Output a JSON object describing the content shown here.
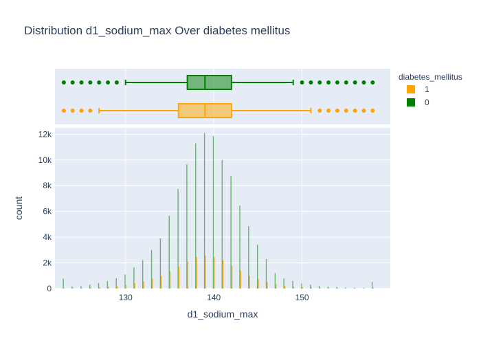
{
  "chart_data": {
    "type": "bar",
    "title": "Distribution d1_sodium_max Over diabetes mellitus",
    "xlabel": "d1_sodium_max",
    "ylabel": "count",
    "xlim": [
      122,
      160
    ],
    "ylim": [
      0,
      12500
    ],
    "xticks": [
      130,
      140,
      150
    ],
    "yticks": [
      0,
      2000,
      4000,
      6000,
      8000,
      10000,
      12000
    ],
    "ytick_labels": [
      "0",
      "2k",
      "4k",
      "6k",
      "8k",
      "10k",
      "12k"
    ],
    "legend": {
      "title": "diabetes_mellitus",
      "position": "top-right"
    },
    "series": [
      {
        "name": "1",
        "color": "#FFA500",
        "x": [
          123,
          124,
          125,
          126,
          127,
          128,
          129,
          130,
          131,
          132,
          133,
          134,
          135,
          136,
          137,
          138,
          139,
          140,
          141,
          142,
          143,
          144,
          145,
          146,
          147,
          148,
          149,
          150,
          151,
          152,
          153,
          154,
          155,
          156,
          157,
          158
        ],
        "values": [
          30,
          40,
          40,
          80,
          100,
          150,
          200,
          300,
          420,
          560,
          780,
          1000,
          1350,
          1700,
          2100,
          2450,
          2550,
          2450,
          2200,
          1800,
          1400,
          1000,
          720,
          500,
          330,
          220,
          150,
          100,
          70,
          50,
          40,
          30,
          20,
          15,
          12,
          60
        ],
        "box": {
          "min": 127,
          "q1": 136,
          "median": 139,
          "q3": 142,
          "max": 151,
          "outliers": [
            123,
            124,
            125,
            126,
            152,
            153,
            154,
            155,
            156,
            157,
            158
          ]
        }
      },
      {
        "name": "0",
        "color": "#008000",
        "x": [
          123,
          124,
          125,
          126,
          127,
          128,
          129,
          130,
          131,
          132,
          133,
          134,
          135,
          136,
          137,
          138,
          139,
          140,
          141,
          142,
          143,
          144,
          145,
          146,
          147,
          148,
          149,
          150,
          151,
          152,
          153,
          154,
          155,
          156,
          157,
          158
        ],
        "values": [
          780,
          180,
          200,
          300,
          420,
          580,
          800,
          1100,
          1650,
          2200,
          3000,
          3900,
          5650,
          7750,
          9650,
          11300,
          12100,
          11850,
          10000,
          8750,
          6450,
          4850,
          3400,
          2300,
          1200,
          800,
          600,
          400,
          300,
          220,
          150,
          120,
          80,
          60,
          40,
          520
        ],
        "box": {
          "min": 130,
          "q1": 137,
          "median": 139,
          "q3": 142,
          "max": 149,
          "outliers": [
            123,
            124,
            125,
            126,
            127,
            128,
            129,
            150,
            151,
            152,
            153,
            154,
            155,
            156,
            157,
            158
          ]
        }
      }
    ]
  }
}
